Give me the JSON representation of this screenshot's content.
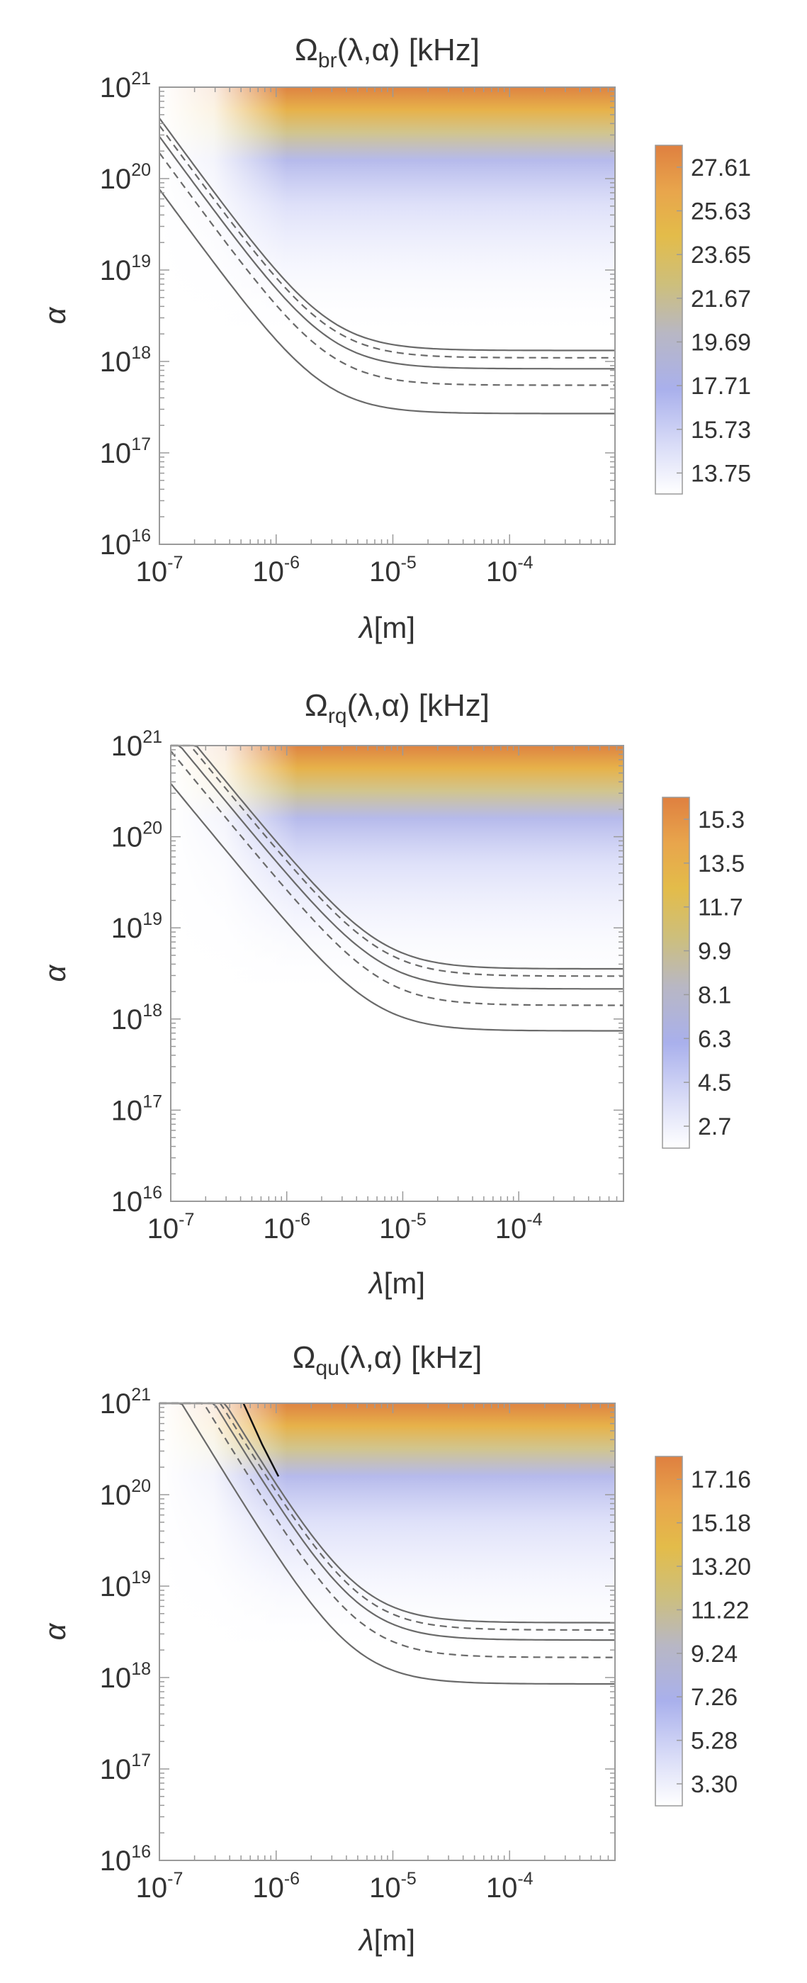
{
  "chart_data": [
    {
      "type": "heatmap",
      "symbol": "Ω",
      "subscript": "br",
      "title_rest": "(λ,α) [kHz]",
      "xlabel_sym": "λ",
      "xlabel_unit": "[m]",
      "ylabel": "α",
      "x_scale": "log",
      "y_scale": "log",
      "xlim": [
        1e-07,
        0.0008
      ],
      "ylim": [
        1e+16,
        1e+21
      ],
      "x_tick_exponents": [
        "-7",
        "-6",
        "-5",
        "-4"
      ],
      "y_tick_exponents": [
        "16",
        "17",
        "18",
        "19",
        "20",
        "21"
      ],
      "colorbar_labels": [
        "27.61",
        "25.63",
        "23.65",
        "21.67",
        "19.69",
        "17.71",
        "15.73",
        "13.75"
      ],
      "colorbar_range": [
        12.8,
        28.6
      ],
      "contours": [
        {
          "style": "solid",
          "log_alpha_plateau": 18.12,
          "log_lambda_knee": -5.55,
          "steep_left": 20.8
        },
        {
          "style": "dashed",
          "log_alpha_plateau": 18.04,
          "log_lambda_knee": -5.55,
          "steep_left": 20.68
        },
        {
          "style": "solid",
          "log_alpha_plateau": 17.92,
          "log_lambda_knee": -5.55,
          "steep_left": 20.56
        },
        {
          "style": "dashed",
          "log_alpha_plateau": 17.74,
          "log_lambda_knee": -5.55,
          "steep_left": 20.42
        },
        {
          "style": "solid",
          "log_alpha_plateau": 17.43,
          "log_lambda_knee": -5.6,
          "steep_left": 20.24
        }
      ]
    },
    {
      "type": "heatmap",
      "symbol": "Ω",
      "subscript": "rq",
      "title_rest": "(λ,α) [kHz]",
      "xlabel_sym": "λ",
      "xlabel_unit": "[m]",
      "ylabel": "α",
      "x_scale": "log",
      "y_scale": "log",
      "xlim": [
        1e-07,
        0.0008
      ],
      "ylim": [
        1e+16,
        1e+21
      ],
      "x_tick_exponents": [
        "-7",
        "-6",
        "-5",
        "-4"
      ],
      "y_tick_exponents": [
        "16",
        "17",
        "18",
        "19",
        "20",
        "21"
      ],
      "colorbar_labels": [
        "15.3",
        "13.5",
        "11.7",
        "9.9",
        "8.1",
        "6.3",
        "4.5",
        "2.7"
      ],
      "colorbar_range": [
        1.8,
        16.2
      ],
      "contours": [
        {
          "style": "solid",
          "log_alpha_plateau": 18.55,
          "log_lambda_knee": -5.2,
          "top_lambda": -6.55
        },
        {
          "style": "dashed",
          "log_alpha_plateau": 18.47,
          "log_lambda_knee": -5.2,
          "top_lambda": -6.6
        },
        {
          "style": "solid",
          "log_alpha_plateau": 18.33,
          "log_lambda_knee": -5.2,
          "top_lambda": -6.65
        },
        {
          "style": "dashed",
          "log_alpha_plateau": 18.15,
          "log_lambda_knee": -5.2,
          "top_lambda": -6.75
        },
        {
          "style": "solid",
          "log_alpha_plateau": 17.87,
          "log_lambda_knee": -5.25,
          "top_lambda": -6.87
        }
      ]
    },
    {
      "type": "heatmap",
      "symbol": "Ω",
      "subscript": "qu",
      "title_rest": "(λ,α) [kHz]",
      "xlabel_sym": "λ",
      "xlabel_unit": "[m]",
      "ylabel": "α",
      "x_scale": "log",
      "y_scale": "log",
      "xlim": [
        1e-07,
        0.0008
      ],
      "ylim": [
        1e+16,
        1e+21
      ],
      "x_tick_exponents": [
        "-7",
        "-6",
        "-5",
        "-4"
      ],
      "y_tick_exponents": [
        "16",
        "17",
        "18",
        "19",
        "20",
        "21"
      ],
      "colorbar_labels": [
        "17.16",
        "15.18",
        "13.20",
        "11.22",
        "9.24",
        "7.26",
        "5.28",
        "3.30"
      ],
      "colorbar_range": [
        2.3,
        18.2
      ],
      "contours": [
        {
          "style": "solid",
          "log_alpha_plateau": 18.6,
          "log_lambda_knee": -5.3
        },
        {
          "style": "dashed",
          "log_alpha_plateau": 18.52,
          "log_lambda_knee": -5.3
        },
        {
          "style": "solid",
          "log_alpha_plateau": 18.41,
          "log_lambda_knee": -5.3
        },
        {
          "style": "dashed",
          "log_alpha_plateau": 18.22,
          "log_lambda_knee": -5.3
        },
        {
          "style": "solid",
          "log_alpha_plateau": 17.93,
          "log_lambda_knee": -5.35
        }
      ]
    }
  ]
}
